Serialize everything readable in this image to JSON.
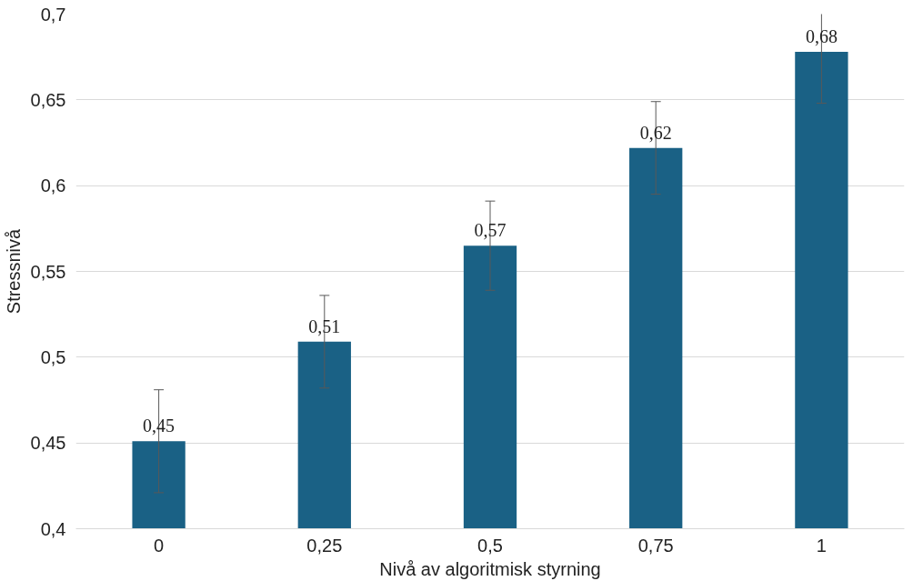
{
  "chart_data": {
    "type": "bar",
    "xlabel": "Nivå av algoritmisk styrning",
    "ylabel": "Stressnivå",
    "categories": [
      "0",
      "0,25",
      "0,5",
      "0,75",
      "1"
    ],
    "values": [
      0.451,
      0.509,
      0.565,
      0.622,
      0.678
    ],
    "errors": [
      0.03,
      0.027,
      0.026,
      0.027,
      0.03
    ],
    "value_labels": [
      "0,45",
      "0,51",
      "0,57",
      "0,62",
      "0,68"
    ],
    "color": "#1a6185",
    "ylim": [
      0.4,
      0.7
    ],
    "yticks": [
      {
        "value": 0.4,
        "label": "0,4"
      },
      {
        "value": 0.45,
        "label": "0,45"
      },
      {
        "value": 0.5,
        "label": "0,5"
      },
      {
        "value": 0.55,
        "label": "0,55"
      },
      {
        "value": 0.6,
        "label": "0,6"
      },
      {
        "value": 0.65,
        "label": "0,65"
      },
      {
        "value": 0.7,
        "label": "0,7"
      }
    ],
    "grid": "y"
  }
}
